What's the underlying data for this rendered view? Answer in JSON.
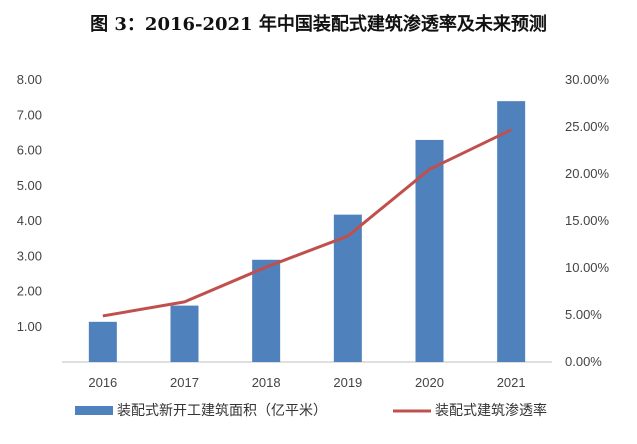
{
  "chart_data": {
    "type": "bar",
    "title": "图 3：2016-2021 年中国装配式建筑渗透率及未来预测",
    "categories": [
      "2016",
      "2017",
      "2018",
      "2019",
      "2020",
      "2021"
    ],
    "series": [
      {
        "name": "装配式新开工建筑面积（亿平米）",
        "type": "bar",
        "axis": "left",
        "values": [
          1.14,
          1.6,
          2.9,
          4.18,
          6.3,
          7.4
        ],
        "color": "#4F81BD"
      },
      {
        "name": "装配式建筑渗透率",
        "type": "line",
        "axis": "right",
        "values": [
          0.049,
          0.064,
          0.101,
          0.134,
          0.205,
          0.247
        ],
        "color": "#C0504D"
      }
    ],
    "y_left": {
      "ylim": [
        0,
        8
      ],
      "ticks": [
        "",
        "1.00",
        "2.00",
        "3.00",
        "4.00",
        "5.00",
        "6.00",
        "7.00",
        "8.00"
      ]
    },
    "y_right": {
      "ylim": [
        0,
        0.3
      ],
      "ticks": [
        "0.00%",
        "5.00%",
        "10.00%",
        "15.00%",
        "20.00%",
        "25.00%",
        "30.00%"
      ]
    },
    "grid": false,
    "legend_position": "bottom"
  }
}
